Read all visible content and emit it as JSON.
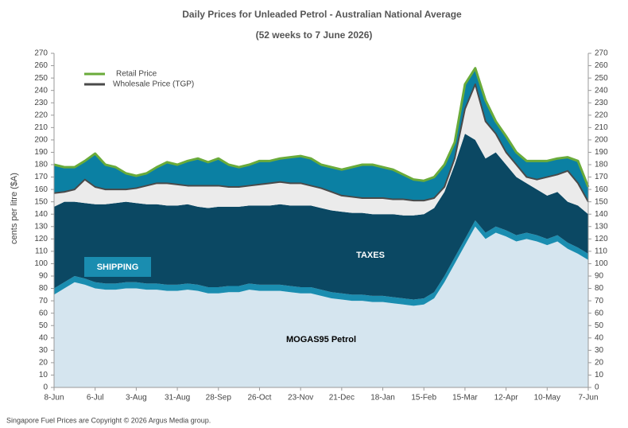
{
  "chart_data": {
    "type": "stacked_area",
    "title": "Daily  Prices for Unleaded  Petrol  - Australian  National  Average",
    "subtitle": "(52 weeks to 7 June 2026)",
    "y_label": "cents per litre ($A)",
    "source": "Singapore  Fuel Prices are  Copyright © 2026 Argus Media  group.",
    "categories": [
      "8-Jun",
      null,
      null,
      null,
      "6-Jul",
      null,
      null,
      null,
      "3-Aug",
      null,
      null,
      null,
      "31-Aug",
      null,
      null,
      null,
      "28-Sep",
      null,
      null,
      null,
      "26-Oct",
      null,
      null,
      null,
      "23-Nov",
      null,
      null,
      null,
      "21-Dec",
      null,
      null,
      null,
      "18-Jan",
      null,
      null,
      null,
      "15-Feb",
      null,
      null,
      null,
      "15-Mar",
      null,
      null,
      null,
      "12-Apr",
      null,
      null,
      null,
      "10-May",
      null,
      null,
      null,
      "7-Jun"
    ],
    "series": [
      {
        "name": "MOGAS95 Petrol",
        "color": "#d5e5ef",
        "values": [
          75,
          80,
          85,
          83,
          80,
          79,
          79,
          80,
          80,
          79,
          79,
          78,
          78,
          79,
          78,
          76,
          76,
          77,
          77,
          79,
          78,
          78,
          78,
          77,
          76,
          76,
          74,
          72,
          71,
          70,
          70,
          69,
          69,
          68,
          67,
          66,
          67,
          72,
          85,
          100,
          115,
          130,
          120,
          125,
          122,
          118,
          120,
          118,
          115,
          118,
          112,
          108,
          103
        ]
      },
      {
        "name": "SHIPPING",
        "color": "#1a8db0",
        "values": [
          5,
          5,
          5,
          5,
          5,
          5,
          5,
          5,
          5,
          5,
          5,
          5,
          5,
          5,
          5,
          5,
          5,
          5,
          5,
          5,
          5,
          5,
          5,
          5,
          5,
          5,
          5,
          5,
          5,
          5,
          5,
          5,
          5,
          5,
          5,
          5,
          5,
          5,
          5,
          5,
          5,
          5,
          5,
          5,
          5,
          5,
          5,
          5,
          5,
          5,
          5,
          5,
          5
        ]
      },
      {
        "name": "TAXES",
        "color": "#0b4863",
        "values": [
          66,
          65,
          60,
          61,
          63,
          64,
          65,
          65,
          64,
          64,
          64,
          64,
          64,
          64,
          63,
          64,
          65,
          64,
          64,
          63,
          64,
          64,
          65,
          65,
          66,
          66,
          66,
          66,
          66,
          66,
          66,
          66,
          66,
          67,
          67,
          68,
          68,
          68,
          68,
          75,
          85,
          65,
          60,
          60,
          53,
          47,
          40,
          37,
          35,
          35,
          33,
          34,
          32
        ]
      },
      {
        "color": "#ebebeb",
        "values": [
          11,
          8,
          10,
          19,
          14,
          12,
          11,
          10,
          12,
          15,
          17,
          18,
          17,
          15,
          17,
          18,
          17,
          16,
          16,
          16,
          17,
          18,
          18,
          18,
          18,
          16,
          16,
          15,
          13,
          13,
          12,
          13,
          13,
          12,
          13,
          12,
          11,
          8,
          4,
          5,
          20,
          45,
          30,
          15,
          10,
          10,
          5,
          8,
          15,
          14,
          25,
          18,
          10
        ]
      },
      {
        "color": "#0b80a3",
        "values": [
          23,
          20,
          18,
          15,
          27,
          20,
          18,
          13,
          10,
          10,
          13,
          17,
          16,
          20,
          22,
          19,
          22,
          18,
          16,
          17,
          19,
          18,
          19,
          21,
          22,
          22,
          19,
          20,
          21,
          24,
          27,
          27,
          25,
          24,
          20,
          17,
          16,
          17,
          18,
          13,
          20,
          13,
          17,
          10,
          13,
          10,
          13,
          15,
          13,
          13,
          11,
          18,
          12
        ]
      }
    ],
    "lines": [
      {
        "name": "Retail Price",
        "color": "#6aab3a",
        "values": [
          180,
          178,
          178,
          183,
          189,
          180,
          178,
          173,
          171,
          173,
          178,
          182,
          180,
          183,
          185,
          182,
          185,
          180,
          178,
          180,
          183,
          183,
          185,
          186,
          187,
          185,
          180,
          178,
          176,
          178,
          180,
          180,
          178,
          176,
          172,
          168,
          167,
          170,
          180,
          198,
          245,
          258,
          232,
          215,
          203,
          190,
          183,
          183,
          183,
          185,
          186,
          183,
          162
        ]
      },
      {
        "name": "Wholesale Price (TGP)",
        "color": "#4a4a4a",
        "values": [
          157,
          158,
          160,
          168,
          162,
          160,
          160,
          160,
          161,
          163,
          165,
          165,
          164,
          163,
          163,
          163,
          163,
          162,
          162,
          163,
          164,
          165,
          166,
          165,
          165,
          163,
          161,
          158,
          155,
          154,
          153,
          153,
          153,
          152,
          152,
          151,
          151,
          153,
          162,
          185,
          225,
          245,
          215,
          205,
          190,
          180,
          170,
          168,
          170,
          172,
          175,
          165,
          150
        ]
      }
    ],
    "legend": "upper left",
    "ylim": [
      0,
      270
    ],
    "yticks": [
      0,
      10,
      20,
      30,
      40,
      50,
      60,
      70,
      80,
      90,
      100,
      110,
      120,
      130,
      140,
      150,
      160,
      170,
      180,
      190,
      200,
      210,
      220,
      230,
      240,
      250,
      260,
      270
    ],
    "y2lim": [
      0,
      270
    ],
    "y2ticks": [
      0,
      10,
      20,
      30,
      40,
      50,
      60,
      70,
      80,
      90,
      100,
      110,
      120,
      130,
      140,
      150,
      160,
      170,
      180,
      190,
      200,
      210,
      220,
      230,
      240,
      250,
      260,
      270
    ]
  }
}
